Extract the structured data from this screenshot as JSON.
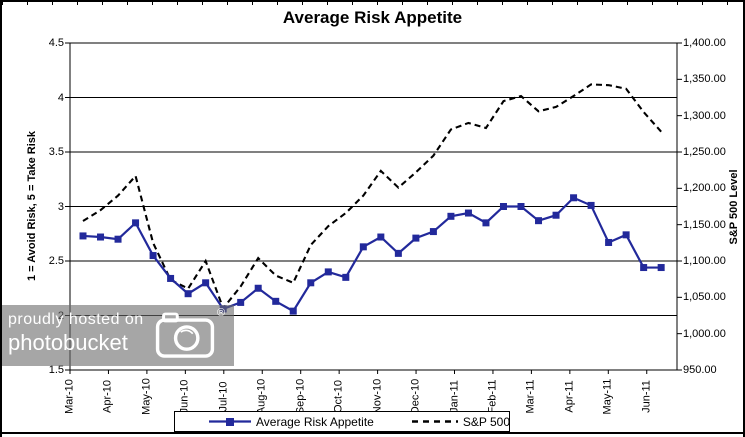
{
  "title": "Average Risk Appetite",
  "left_axis": {
    "title": "1 = Avoid Risk, 5 = Take Risk",
    "tick_labels": [
      "4.5",
      "4",
      "3.5",
      "3",
      "2.5",
      "2",
      "1.5"
    ],
    "min": 1.5,
    "max": 4.5
  },
  "right_axis": {
    "title": "S&P 500 Level",
    "tick_labels": [
      "1,400.00",
      "1,350.00",
      "1,300.00",
      "1,250.00",
      "1,200.00",
      "1,150.00",
      "1,100.00",
      "1,050.00",
      "1,000.00",
      "950.00"
    ],
    "min": 950,
    "max": 1400
  },
  "x_axis": {
    "tick_labels": [
      "Mar-10",
      "Apr-10",
      "May-10",
      "Jun-10",
      "Jul-10",
      "Aug-10",
      "Sep-10",
      "Oct-10",
      "Nov-10",
      "Dec-10",
      "Jan-11",
      "Feb-11",
      "Mar-11",
      "Apr-11",
      "May-11",
      "Jun-11"
    ]
  },
  "legend": {
    "items": [
      {
        "label": "Average Risk Appetite",
        "style": "solid-square-marker",
        "color": "#22299b"
      },
      {
        "label": "S&P 500",
        "style": "dashed",
        "color": "#000000"
      }
    ],
    "position": "bottom"
  },
  "watermark": {
    "line1": "proudly hosted on",
    "line2": "photobucket",
    "registered_mark": "®",
    "icon": "camera-icon"
  },
  "colors": {
    "risk_series": "#22299b",
    "sp_series": "#000000",
    "grid": "#000000",
    "watermark_bg": "#6a6a6a",
    "watermark_text": "#ffffff"
  },
  "chart_data": {
    "type": "line",
    "title": "Average Risk Appetite",
    "x_tick_labels": [
      "Mar-10",
      "Apr-10",
      "May-10",
      "Jun-10",
      "Jul-10",
      "Aug-10",
      "Sep-10",
      "Oct-10",
      "Nov-10",
      "Dec-10",
      "Jan-11",
      "Feb-11",
      "Mar-11",
      "Apr-11",
      "May-11",
      "Jun-11"
    ],
    "sampling": "biweekly, 34 points from mid Mar-10 to late Jun-11",
    "series": [
      {
        "name": "Average Risk Appetite",
        "axis": "left",
        "style": "solid",
        "marker": "square",
        "color": "#22299b",
        "values": [
          2.73,
          2.72,
          2.7,
          2.85,
          2.55,
          2.34,
          2.2,
          2.3,
          2.06,
          2.12,
          2.25,
          2.13,
          2.04,
          2.3,
          2.4,
          2.35,
          2.63,
          2.72,
          2.57,
          2.71,
          2.77,
          2.91,
          2.94,
          2.85,
          3.0,
          3.0,
          2.87,
          2.92,
          3.08,
          3.01,
          2.67,
          2.74,
          2.44,
          2.44
        ]
      },
      {
        "name": "S&P 500",
        "axis": "right",
        "style": "dashed",
        "marker": "none",
        "color": "#000000",
        "values": [
          1155,
          1170,
          1190,
          1217,
          1125,
          1074,
          1062,
          1100,
          1035,
          1065,
          1104,
          1080,
          1070,
          1122,
          1148,
          1166,
          1190,
          1224,
          1201,
          1222,
          1245,
          1281,
          1290,
          1283,
          1320,
          1327,
          1306,
          1312,
          1327,
          1343,
          1342,
          1337,
          1305,
          1278
        ]
      }
    ],
    "ylabel_left": "1 = Avoid Risk, 5 = Take Risk",
    "ylabel_right": "S&P 500 Level",
    "left_ylim": [
      1.5,
      4.5
    ],
    "right_ylim": [
      950,
      1400
    ],
    "grid": "horizontal",
    "legend_position": "bottom"
  }
}
